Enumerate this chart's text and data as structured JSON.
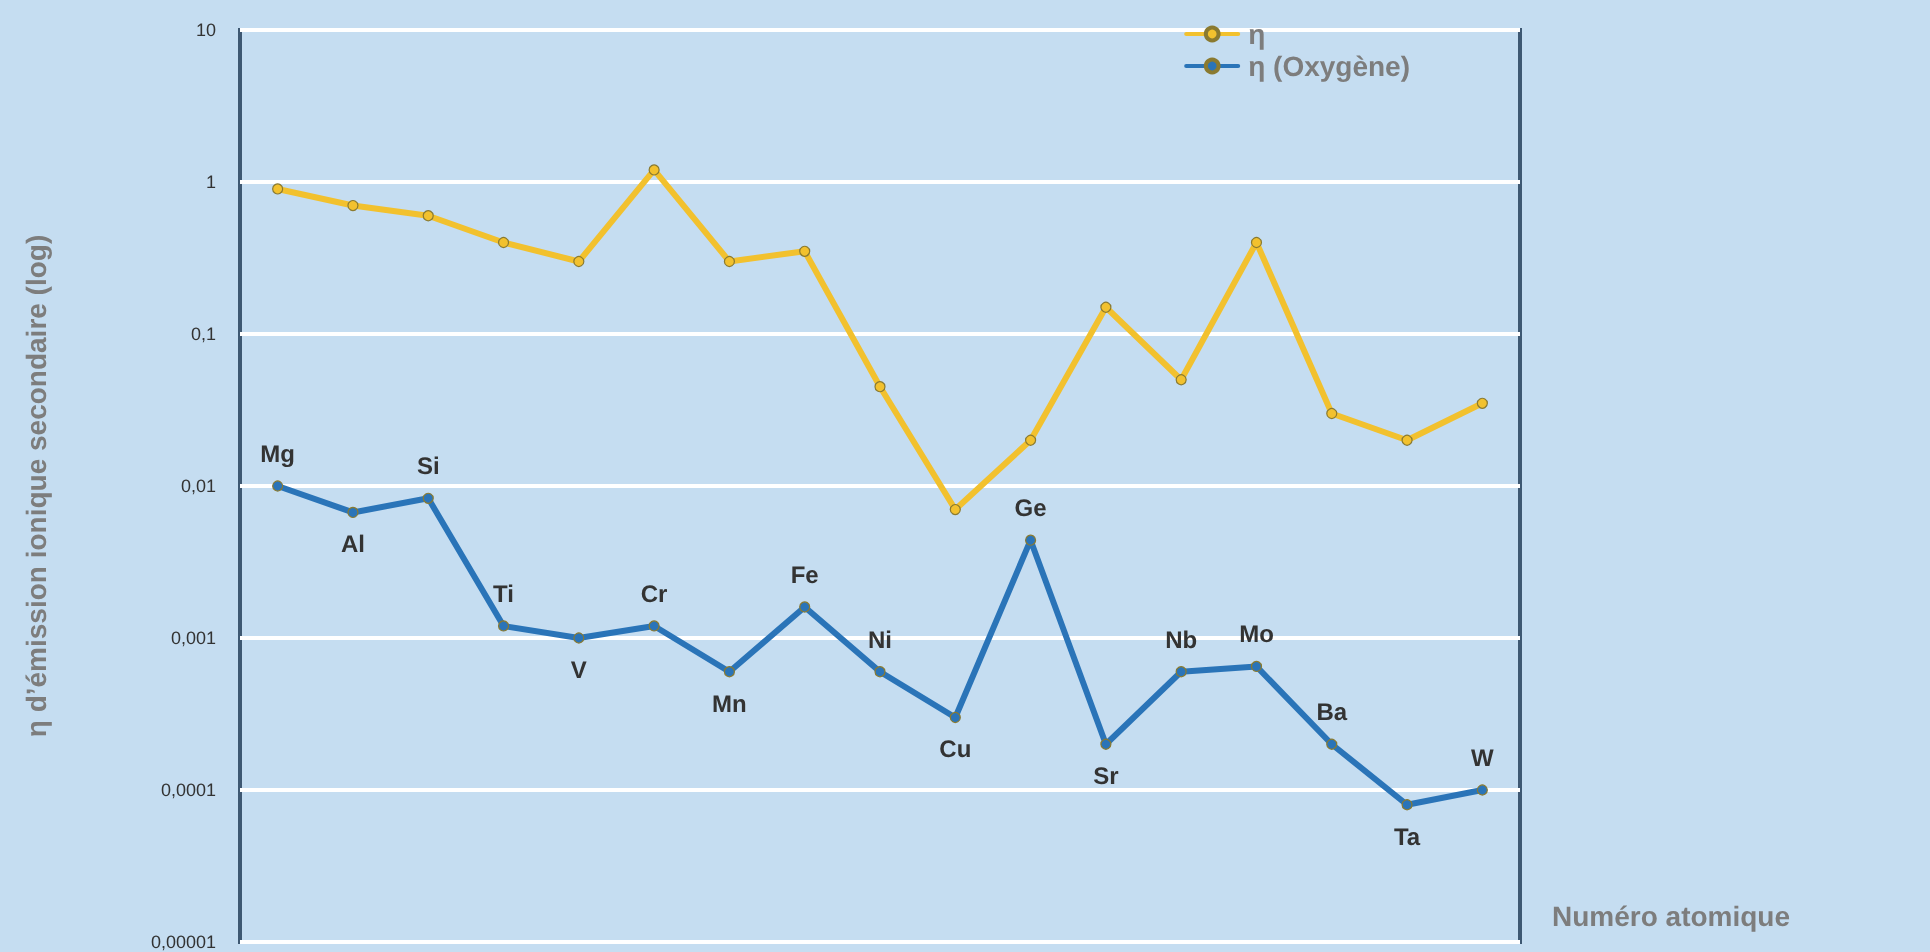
{
  "chart_data": {
    "type": "line",
    "xlabel": "Numéro atomique",
    "ylabel": "η d’émission ionique secondaire (log)",
    "categories": [
      "Mg",
      "Al",
      "Si",
      "Ti",
      "V",
      "Cr",
      "Mn",
      "Fe",
      "Ni",
      "Cu",
      "Ge",
      "Sr",
      "Nb",
      "Mo",
      "Ba",
      "Ta",
      "W"
    ],
    "log": "y",
    "ylim": [
      1e-05,
      10
    ],
    "yticks": [
      {
        "value": 1e-05,
        "label": "0,00001"
      },
      {
        "value": 0.0001,
        "label": "0,0001"
      },
      {
        "value": 0.001,
        "label": "0,001"
      },
      {
        "value": 0.01,
        "label": "0,01"
      },
      {
        "value": 0.1,
        "label": "0,1"
      },
      1,
      10
    ],
    "tick_labels": "y",
    "grid": "y",
    "legend": "top right",
    "marker": "circle",
    "line_style": "solid",
    "series": [
      {
        "name": "η",
        "color": "#f2c12e",
        "values": [
          0.9,
          0.7,
          0.6,
          0.4,
          0.3,
          1.2,
          0.3,
          0.35,
          0.045,
          0.007,
          0.02,
          0.15,
          0.05,
          0.4,
          0.03,
          0.02,
          0.035
        ]
      },
      {
        "name": "η (Oxygène)",
        "color": "#2a74b8",
        "values": [
          0.01,
          0.0067,
          0.0083,
          0.0012,
          0.001,
          0.0012,
          0.0006,
          0.0016,
          0.0006,
          0.0003,
          0.0044,
          0.0002,
          0.0006,
          0.00065,
          0.0002,
          8e-05,
          0.0001
        ]
      }
    ]
  }
}
